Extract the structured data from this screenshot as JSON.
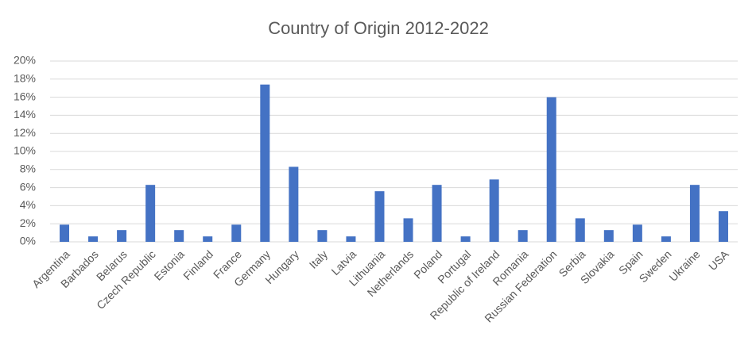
{
  "chart_data": {
    "type": "bar",
    "title": "Country of Origin 2012-2022",
    "categories": [
      "Argentina",
      "Barbados",
      "Belarus",
      "Czech Republic",
      "Estonia",
      "Finland",
      "France",
      "Germany",
      "Hungary",
      "Italy",
      "Latvia",
      "Lithuania",
      "Netherlands",
      "Poland",
      "Portugal",
      "Republic of Ireland",
      "Romania",
      "Russian Federation",
      "Serbia",
      "Slovakia",
      "Spain",
      "Sweden",
      "Ukraine",
      "USA"
    ],
    "values": [
      1.9,
      0.6,
      1.3,
      6.3,
      1.3,
      0.6,
      1.9,
      17.4,
      8.3,
      1.3,
      0.6,
      5.6,
      2.6,
      6.3,
      0.6,
      6.9,
      1.3,
      16.0,
      2.6,
      1.3,
      1.9,
      0.6,
      6.3,
      3.4
    ],
    "color": "#4472c4",
    "ylim": [
      0,
      20
    ],
    "yticks": [
      {
        "value": 0,
        "label": "0%"
      },
      {
        "value": 2,
        "label": "2%"
      },
      {
        "value": 4,
        "label": "4%"
      },
      {
        "value": 6,
        "label": "6%"
      },
      {
        "value": 8,
        "label": "8%"
      },
      {
        "value": 10,
        "label": "10%"
      },
      {
        "value": 12,
        "label": "12%"
      },
      {
        "value": 14,
        "label": "14%"
      },
      {
        "value": 16,
        "label": "16%"
      },
      {
        "value": 18,
        "label": "18%"
      },
      {
        "value": 20,
        "label": "20%"
      }
    ],
    "grid": true
  }
}
